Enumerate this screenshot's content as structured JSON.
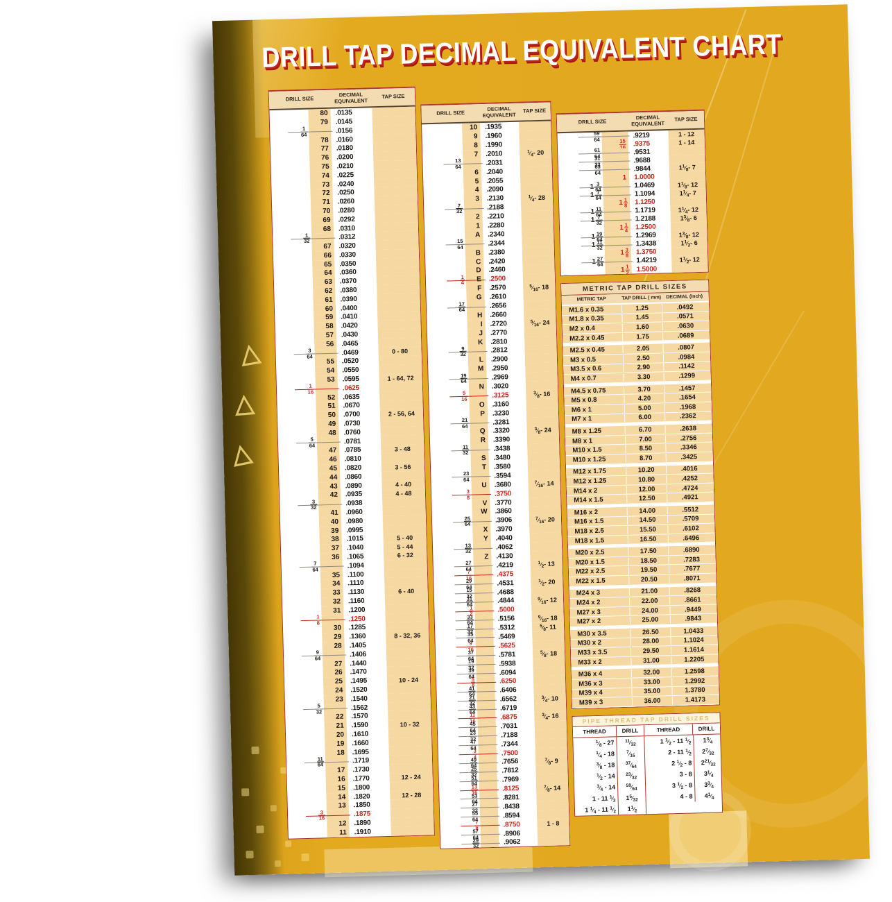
{
  "poster": {
    "title": "DRILL TAP DECIMAL EQUIVALENT CHART",
    "colors": {
      "canvas_yellow": "#e2a81f",
      "cream": "#f6d8a2",
      "accent_red": "#c0241a",
      "edge_dark": "#5c4909"
    }
  },
  "drill_table_headers": [
    "DRILL SIZE",
    "DECIMAL EQUIVALENT",
    "TAP SIZE"
  ],
  "decorations": {
    "triangle_glyph": "△"
  },
  "drill_columns": {
    "col1": [
      [
        "",
        "80",
        ".0135",
        "",
        0
      ],
      [
        "",
        "79",
        ".0145",
        "",
        0
      ],
      [
        "1/64",
        "",
        ".0156",
        "",
        0
      ],
      [
        "",
        "78",
        ".0160",
        "",
        0
      ],
      [
        "",
        "77",
        ".0180",
        "",
        0
      ],
      [
        "",
        "76",
        ".0200",
        "",
        0
      ],
      [
        "",
        "75",
        ".0210",
        "",
        0
      ],
      [
        "",
        "74",
        ".0225",
        "",
        0
      ],
      [
        "",
        "73",
        ".0240",
        "",
        0
      ],
      [
        "",
        "72",
        ".0250",
        "",
        0
      ],
      [
        "",
        "71",
        ".0260",
        "",
        0
      ],
      [
        "",
        "70",
        ".0280",
        "",
        0
      ],
      [
        "",
        "69",
        ".0292",
        "",
        0
      ],
      [
        "",
        "68",
        ".0310",
        "",
        0
      ],
      [
        "1/32",
        "",
        ".0312",
        "",
        0
      ],
      [
        "",
        "67",
        ".0320",
        "",
        0
      ],
      [
        "",
        "66",
        ".0330",
        "",
        0
      ],
      [
        "",
        "65",
        ".0350",
        "",
        0
      ],
      [
        "",
        "64",
        ".0360",
        "",
        0
      ],
      [
        "",
        "63",
        ".0370",
        "",
        0
      ],
      [
        "",
        "62",
        ".0380",
        "",
        0
      ],
      [
        "",
        "61",
        ".0390",
        "",
        0
      ],
      [
        "",
        "60",
        ".0400",
        "",
        0
      ],
      [
        "",
        "59",
        ".0410",
        "",
        0
      ],
      [
        "",
        "58",
        ".0420",
        "",
        0
      ],
      [
        "",
        "57",
        ".0430",
        "",
        0
      ],
      [
        "",
        "56",
        ".0465",
        "",
        0
      ],
      [
        "3/64",
        "",
        ".0469",
        "0 - 80",
        0
      ],
      [
        "",
        "55",
        ".0520",
        "",
        0
      ],
      [
        "",
        "54",
        ".0550",
        "",
        0
      ],
      [
        "",
        "53",
        ".0595",
        "1 - 64, 72",
        0
      ],
      [
        "1/16",
        "",
        ".0625",
        "",
        1
      ],
      [
        "",
        "52",
        ".0635",
        "",
        0
      ],
      [
        "",
        "51",
        ".0670",
        "",
        0
      ],
      [
        "",
        "50",
        ".0700",
        "2 - 56, 64",
        0
      ],
      [
        "",
        "49",
        ".0730",
        "",
        0
      ],
      [
        "",
        "48",
        ".0760",
        "",
        0
      ],
      [
        "5/64",
        "",
        ".0781",
        "",
        0
      ],
      [
        "",
        "47",
        ".0785",
        "3 - 48",
        0
      ],
      [
        "",
        "46",
        ".0810",
        "",
        0
      ],
      [
        "",
        "45",
        ".0820",
        "3 - 56",
        0
      ],
      [
        "",
        "44",
        ".0860",
        "",
        0
      ],
      [
        "",
        "43",
        ".0890",
        "4 - 40",
        0
      ],
      [
        "",
        "42",
        ".0935",
        "4 - 48",
        0
      ],
      [
        "3/32",
        "",
        ".0938",
        "",
        0
      ],
      [
        "",
        "41",
        ".0960",
        "",
        0
      ],
      [
        "",
        "40",
        ".0980",
        "",
        0
      ],
      [
        "",
        "39",
        ".0995",
        "",
        0
      ],
      [
        "",
        "38",
        ".1015",
        "5 - 40",
        0
      ],
      [
        "",
        "37",
        ".1040",
        "5 - 44",
        0
      ],
      [
        "",
        "36",
        ".1065",
        "6 - 32",
        0
      ],
      [
        "7/64",
        "",
        ".1094",
        "",
        0
      ],
      [
        "",
        "35",
        ".1100",
        "",
        0
      ],
      [
        "",
        "34",
        ".1110",
        "",
        0
      ],
      [
        "",
        "33",
        ".1130",
        "6 - 40",
        0
      ],
      [
        "",
        "32",
        ".1160",
        "",
        0
      ],
      [
        "",
        "31",
        ".1200",
        "",
        0
      ],
      [
        "1/8",
        "",
        ".1250",
        "",
        1
      ],
      [
        "",
        "30",
        ".1285",
        "",
        0
      ],
      [
        "",
        "29",
        ".1360",
        "8 - 32, 36",
        0
      ],
      [
        "",
        "28",
        ".1405",
        "",
        0
      ],
      [
        "9/64",
        "",
        ".1406",
        "",
        0
      ],
      [
        "",
        "27",
        ".1440",
        "",
        0
      ],
      [
        "",
        "26",
        ".1470",
        "",
        0
      ],
      [
        "",
        "25",
        ".1495",
        "10 - 24",
        0
      ],
      [
        "",
        "24",
        ".1520",
        "",
        0
      ],
      [
        "",
        "23",
        ".1540",
        "",
        0
      ],
      [
        "5/32",
        "",
        ".1562",
        "",
        0
      ],
      [
        "",
        "22",
        ".1570",
        "",
        0
      ],
      [
        "",
        "21",
        ".1590",
        "10 - 32",
        0
      ],
      [
        "",
        "20",
        ".1610",
        "",
        0
      ],
      [
        "",
        "19",
        ".1660",
        "",
        0
      ],
      [
        "",
        "18",
        ".1695",
        "",
        0
      ],
      [
        "11/64",
        "",
        ".1719",
        "",
        0
      ],
      [
        "",
        "17",
        ".1730",
        "",
        0
      ],
      [
        "",
        "16",
        ".1770",
        "12 - 24",
        0
      ],
      [
        "",
        "15",
        ".1800",
        "",
        0
      ],
      [
        "",
        "14",
        ".1820",
        "12 - 28",
        0
      ],
      [
        "",
        "13",
        ".1850",
        "",
        0
      ],
      [
        "3/16",
        "",
        ".1875",
        "",
        1
      ],
      [
        "",
        "12",
        ".1890",
        "",
        0
      ],
      [
        "",
        "11",
        ".1910",
        "",
        0
      ]
    ],
    "col2": [
      [
        "",
        "10",
        ".1935",
        "",
        0
      ],
      [
        "",
        "9",
        ".1960",
        "",
        0
      ],
      [
        "",
        "8",
        ".1990",
        "",
        0
      ],
      [
        "",
        "7",
        ".2010",
        "1/4 - 20",
        0
      ],
      [
        "13/64",
        "",
        ".2031",
        "",
        0
      ],
      [
        "",
        "6",
        ".2040",
        "",
        0
      ],
      [
        "",
        "5",
        ".2055",
        "",
        0
      ],
      [
        "",
        "4",
        ".2090",
        "",
        0
      ],
      [
        "",
        "3",
        ".2130",
        "1/4 - 28",
        0
      ],
      [
        "7/32",
        "",
        ".2188",
        "",
        0
      ],
      [
        "",
        "2",
        ".2210",
        "",
        0
      ],
      [
        "",
        "1",
        ".2280",
        "",
        0
      ],
      [
        "",
        "A",
        ".2340",
        "",
        0
      ],
      [
        "15/64",
        "",
        ".2344",
        "",
        0
      ],
      [
        "",
        "B",
        ".2380",
        "",
        0
      ],
      [
        "",
        "C",
        ".2420",
        "",
        0
      ],
      [
        "",
        "D",
        ".2460",
        "",
        0
      ],
      [
        "1/4",
        "E",
        ".2500",
        "",
        1
      ],
      [
        "",
        "F",
        ".2570",
        "5/16 - 18",
        0
      ],
      [
        "",
        "G",
        ".2610",
        "",
        0
      ],
      [
        "17/64",
        "",
        ".2656",
        "",
        0
      ],
      [
        "",
        "H",
        ".2660",
        "",
        0
      ],
      [
        "",
        "I",
        ".2720",
        "5/16 - 24",
        0
      ],
      [
        "",
        "J",
        ".2770",
        "",
        0
      ],
      [
        "",
        "K",
        ".2810",
        "",
        0
      ],
      [
        "9/32",
        "",
        ".2812",
        "",
        0
      ],
      [
        "",
        "L",
        ".2900",
        "",
        0
      ],
      [
        "",
        "M",
        ".2950",
        "",
        0
      ],
      [
        "19/64",
        "",
        ".2969",
        "",
        0
      ],
      [
        "",
        "N",
        ".3020",
        "",
        0
      ],
      [
        "5/16",
        "",
        ".3125",
        "3/8 - 16",
        1
      ],
      [
        "",
        "O",
        ".3160",
        "",
        0
      ],
      [
        "",
        "P",
        ".3230",
        "",
        0
      ],
      [
        "21/64",
        "",
        ".3281",
        "",
        0
      ],
      [
        "",
        "Q",
        ".3320",
        "3/8 - 24",
        0
      ],
      [
        "",
        "R",
        ".3390",
        "",
        0
      ],
      [
        "11/32",
        "",
        ".3438",
        "",
        0
      ],
      [
        "",
        "S",
        ".3480",
        "",
        0
      ],
      [
        "",
        "T",
        ".3580",
        "",
        0
      ],
      [
        "23/64",
        "",
        ".3594",
        "",
        0
      ],
      [
        "",
        "U",
        ".3680",
        "7/16 - 14",
        0
      ],
      [
        "3/8",
        "",
        ".3750",
        "",
        1
      ],
      [
        "",
        "V",
        ".3770",
        "",
        0
      ],
      [
        "",
        "W",
        ".3860",
        "",
        0
      ],
      [
        "25/64",
        "",
        ".3906",
        "7/16 - 20",
        0
      ],
      [
        "",
        "X",
        ".3970",
        "",
        0
      ],
      [
        "",
        "Y",
        ".4040",
        "",
        0
      ],
      [
        "13/32",
        "",
        ".4062",
        "",
        0
      ],
      [
        "",
        "Z",
        ".4130",
        "",
        0
      ],
      [
        "27/64",
        "",
        ".4219",
        "1/2 - 13",
        0
      ],
      [
        "7/16",
        "",
        ".4375",
        "",
        1
      ],
      [
        "29/64",
        "",
        ".4531",
        "1/2 - 20",
        0
      ],
      [
        "15/32",
        "",
        ".4688",
        "",
        0
      ],
      [
        "31/64",
        "",
        ".4844",
        "9/16 - 12",
        0
      ],
      [
        "1/2",
        "",
        ".5000",
        "",
        1
      ],
      [
        "33/64",
        "",
        ".5156",
        "9/16 - 18",
        0
      ],
      [
        "17/32",
        "",
        ".5312",
        "5/8 - 11",
        0
      ],
      [
        "35/64",
        "",
        ".5469",
        "",
        0
      ],
      [
        "9/16",
        "",
        ".5625",
        "",
        1
      ],
      [
        "37/64",
        "",
        ".5781",
        "5/8 - 18",
        0
      ],
      [
        "19/32",
        "",
        ".5938",
        "",
        0
      ],
      [
        "39/64",
        "",
        ".6094",
        "",
        0
      ],
      [
        "5/8",
        "",
        ".6250",
        "",
        1
      ],
      [
        "41/64",
        "",
        ".6406",
        "",
        0
      ],
      [
        "21/32",
        "",
        ".6562",
        "3/4 - 10",
        0
      ],
      [
        "43/64",
        "",
        ".6719",
        "",
        0
      ],
      [
        "11/16",
        "",
        ".6875",
        "3/4 - 16",
        1
      ],
      [
        "45/64",
        "",
        ".7031",
        "",
        0
      ],
      [
        "23/32",
        "",
        ".7188",
        "",
        0
      ],
      [
        "47/64",
        "",
        ".7344",
        "",
        0
      ],
      [
        "3/4",
        "",
        ".7500",
        "",
        1
      ],
      [
        "49/64",
        "",
        ".7656",
        "7/8 - 9",
        0
      ],
      [
        "25/32",
        "",
        ".7812",
        "",
        0
      ],
      [
        "51/64",
        "",
        ".7969",
        "",
        0
      ],
      [
        "13/16",
        "",
        ".8125",
        "7/8 - 14",
        1
      ],
      [
        "53/64",
        "",
        ".8281",
        "",
        0
      ],
      [
        "27/32",
        "",
        ".8438",
        "",
        0
      ],
      [
        "55/64",
        "",
        ".8594",
        "",
        0
      ],
      [
        "7/8",
        "",
        ".8750",
        "1 - 8",
        1
      ],
      [
        "57/64",
        "",
        ".8906",
        "",
        0
      ],
      [
        "29/32",
        "",
        ".9062",
        "",
        0
      ]
    ],
    "col3": [
      [
        "59/64",
        "",
        ".9219",
        "1 - 12",
        0
      ],
      [
        "",
        "15/16",
        ".9375",
        "1 - 14",
        2
      ],
      [
        "61/64",
        "",
        ".9531",
        "",
        0
      ],
      [
        "31/32",
        "",
        ".9688",
        "",
        0
      ],
      [
        "63/64",
        "",
        ".9844",
        "1 1/8 - 7",
        0
      ],
      [
        "",
        "1",
        "1.0000",
        "",
        2
      ],
      [
        "1 3/64",
        "",
        "1.0469",
        "1 1/8 - 12",
        0
      ],
      [
        "1 7/64",
        "",
        "1.1094",
        "1 1/4 - 7",
        0
      ],
      [
        "",
        "1 1/8",
        "1.1250",
        "",
        2
      ],
      [
        "1 11/64",
        "",
        "1.1719",
        "1 1/4 - 12",
        0
      ],
      [
        "1 7/32",
        "",
        "1.2188",
        "1 3/8 - 6",
        0
      ],
      [
        "",
        "1 1/4",
        "1.2500",
        "",
        2
      ],
      [
        "1 19/64",
        "",
        "1.2969",
        "1 3/8 - 12",
        0
      ],
      [
        "1 11/32",
        "",
        "1.3438",
        "1 1/2 - 6",
        0
      ],
      [
        "",
        "1 3/8",
        "1.3750",
        "",
        2
      ],
      [
        "1 27/64",
        "",
        "1.4219",
        "1 1/2 - 12",
        0
      ],
      [
        "",
        "1 1/2",
        "1.5000",
        "",
        2
      ]
    ]
  },
  "metric_table": {
    "title": "METRIC  TAP DRILL SIZES",
    "headers": [
      "METRIC TAP",
      "TAP DRILL ( mm)",
      "DECIMAL (Inch)"
    ],
    "rows": [
      [
        "M1.6 x 0.35",
        "1.25",
        ".0492"
      ],
      [
        "M1.8 x 0.35",
        "1.45",
        ".0571"
      ],
      [
        "M2 x 0.4",
        "1.60",
        ".0630"
      ],
      [
        "M2.2 x 0.45",
        "1.75",
        ".0689"
      ],
      [
        "M2.5 x 0.45",
        "2.05",
        ".0807"
      ],
      [
        "M3 x 0.5",
        "2.50",
        ".0984"
      ],
      [
        "M3.5 x 0.6",
        "2.90",
        ".1142"
      ],
      [
        "M4 x 0.7",
        "3.30",
        ".1299"
      ],
      [
        "M4.5 x 0.75",
        "3.70",
        ".1457"
      ],
      [
        "M5 x 0.8",
        "4.20",
        ".1654"
      ],
      [
        "M6 x 1",
        "5.00",
        ".1968"
      ],
      [
        "M7 x 1",
        "6.00",
        ".2362"
      ],
      [
        "M8 x 1.25",
        "6.70",
        ".2638"
      ],
      [
        "M8 x 1",
        "7.00",
        ".2756"
      ],
      [
        "M10 x 1.5",
        "8.50",
        ".3346"
      ],
      [
        "M10 x 1.25",
        "8.70",
        ".3425"
      ],
      [
        "M12 x 1.75",
        "10.20",
        ".4016"
      ],
      [
        "M12 x 1.25",
        "10.80",
        ".4252"
      ],
      [
        "M14 x 2",
        "12.00",
        ".4724"
      ],
      [
        "M14 x 1.5",
        "12.50",
        ".4921"
      ],
      [
        "M16 x 2",
        "14.00",
        ".5512"
      ],
      [
        "M16 x 1.5",
        "14.50",
        ".5709"
      ],
      [
        "M18 x 2.5",
        "15.50",
        ".6102"
      ],
      [
        "M18 x 1.5",
        "16.50",
        ".6496"
      ],
      [
        "M20 x 2.5",
        "17.50",
        ".6890"
      ],
      [
        "M20 x 1.5",
        "18.50",
        ".7283"
      ],
      [
        "M22 x 2.5",
        "19.50",
        ".7677"
      ],
      [
        "M22 x 1.5",
        "20.50",
        ".8071"
      ],
      [
        "M24 x 3",
        "21.00",
        ".8268"
      ],
      [
        "M24 x 2",
        "22.00",
        ".8661"
      ],
      [
        "M27 x 3",
        "24.00",
        ".9449"
      ],
      [
        "M27 x 2",
        "25.00",
        ".9843"
      ],
      [
        "M30 x 3.5",
        "26.50",
        "1.0433"
      ],
      [
        "M30 x 2",
        "28.00",
        "1.1024"
      ],
      [
        "M33 x 3.5",
        "29.50",
        "1.1614"
      ],
      [
        "M33 x 2",
        "31.00",
        "1.2205"
      ],
      [
        "M36 x 4",
        "32.00",
        "1.2598"
      ],
      [
        "M36 x 3",
        "33.00",
        "1.2992"
      ],
      [
        "M39 x 4",
        "35.00",
        "1.3780"
      ],
      [
        "M39 x 3",
        "36.00",
        "1.4173"
      ]
    ]
  },
  "pipe_table": {
    "title": "PIPE THREAD TAP DRILL SIZES",
    "headers": [
      "THREAD",
      "DRILL",
      "THREAD",
      "DRILL"
    ],
    "left_rows": [
      [
        "1/8 - 27",
        "11/32"
      ],
      [
        "1/4 - 18",
        "7/16"
      ],
      [
        "3/8 - 18",
        "37/64"
      ],
      [
        "1/2 - 14",
        "23/32"
      ],
      [
        "3/4 - 14",
        "59/64"
      ],
      [
        "1 - 11 1/2",
        "1 5/32"
      ],
      [
        "1 1/4 - 11 1/2",
        "1 1/2"
      ]
    ],
    "right_rows": [
      [
        "1 1/2 - 11 1/2",
        "1 3/4"
      ],
      [
        "2 - 11 1/2",
        "2 7/32"
      ],
      [
        "2 1/2 - 8",
        "2 21/32"
      ],
      [
        "3 - 8",
        "3 1/4"
      ],
      [
        "3 1/2 - 8",
        "3 3/4"
      ],
      [
        "4 - 8",
        "4 1/4"
      ]
    ]
  }
}
